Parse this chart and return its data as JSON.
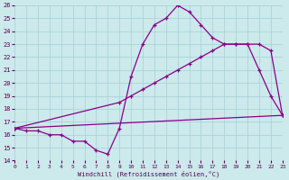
{
  "xlabel": "Windchill (Refroidissement éolien,°C)",
  "bg_color": "#cce9ec",
  "grid_color": "#aad4d8",
  "line_color": "#880088",
  "xmin": 0,
  "xmax": 23,
  "ymin": 14,
  "ymax": 26,
  "line1_x": [
    0,
    1,
    2,
    3,
    4,
    5,
    6,
    7,
    8,
    9,
    10,
    11,
    12,
    13,
    14,
    15,
    16,
    17,
    18,
    19,
    20,
    21,
    22,
    23
  ],
  "line1_y": [
    16.5,
    16.3,
    16.3,
    16.0,
    16.0,
    15.5,
    15.5,
    14.8,
    14.5,
    16.5,
    20.5,
    23.0,
    24.5,
    25.0,
    26.0,
    25.5,
    24.5,
    23.5,
    23.0,
    23.0,
    23.0,
    21.0,
    19.0,
    17.5
  ],
  "line2_x": [
    0,
    9,
    10,
    11,
    12,
    13,
    14,
    15,
    16,
    17,
    18,
    19,
    20,
    21,
    22,
    23
  ],
  "line2_y": [
    16.5,
    18.5,
    19.0,
    19.5,
    20.0,
    20.5,
    21.0,
    21.5,
    22.0,
    22.5,
    23.0,
    23.0,
    23.0,
    23.0,
    22.5,
    17.5
  ],
  "line3_x": [
    0,
    23
  ],
  "line3_y": [
    16.5,
    17.5
  ]
}
